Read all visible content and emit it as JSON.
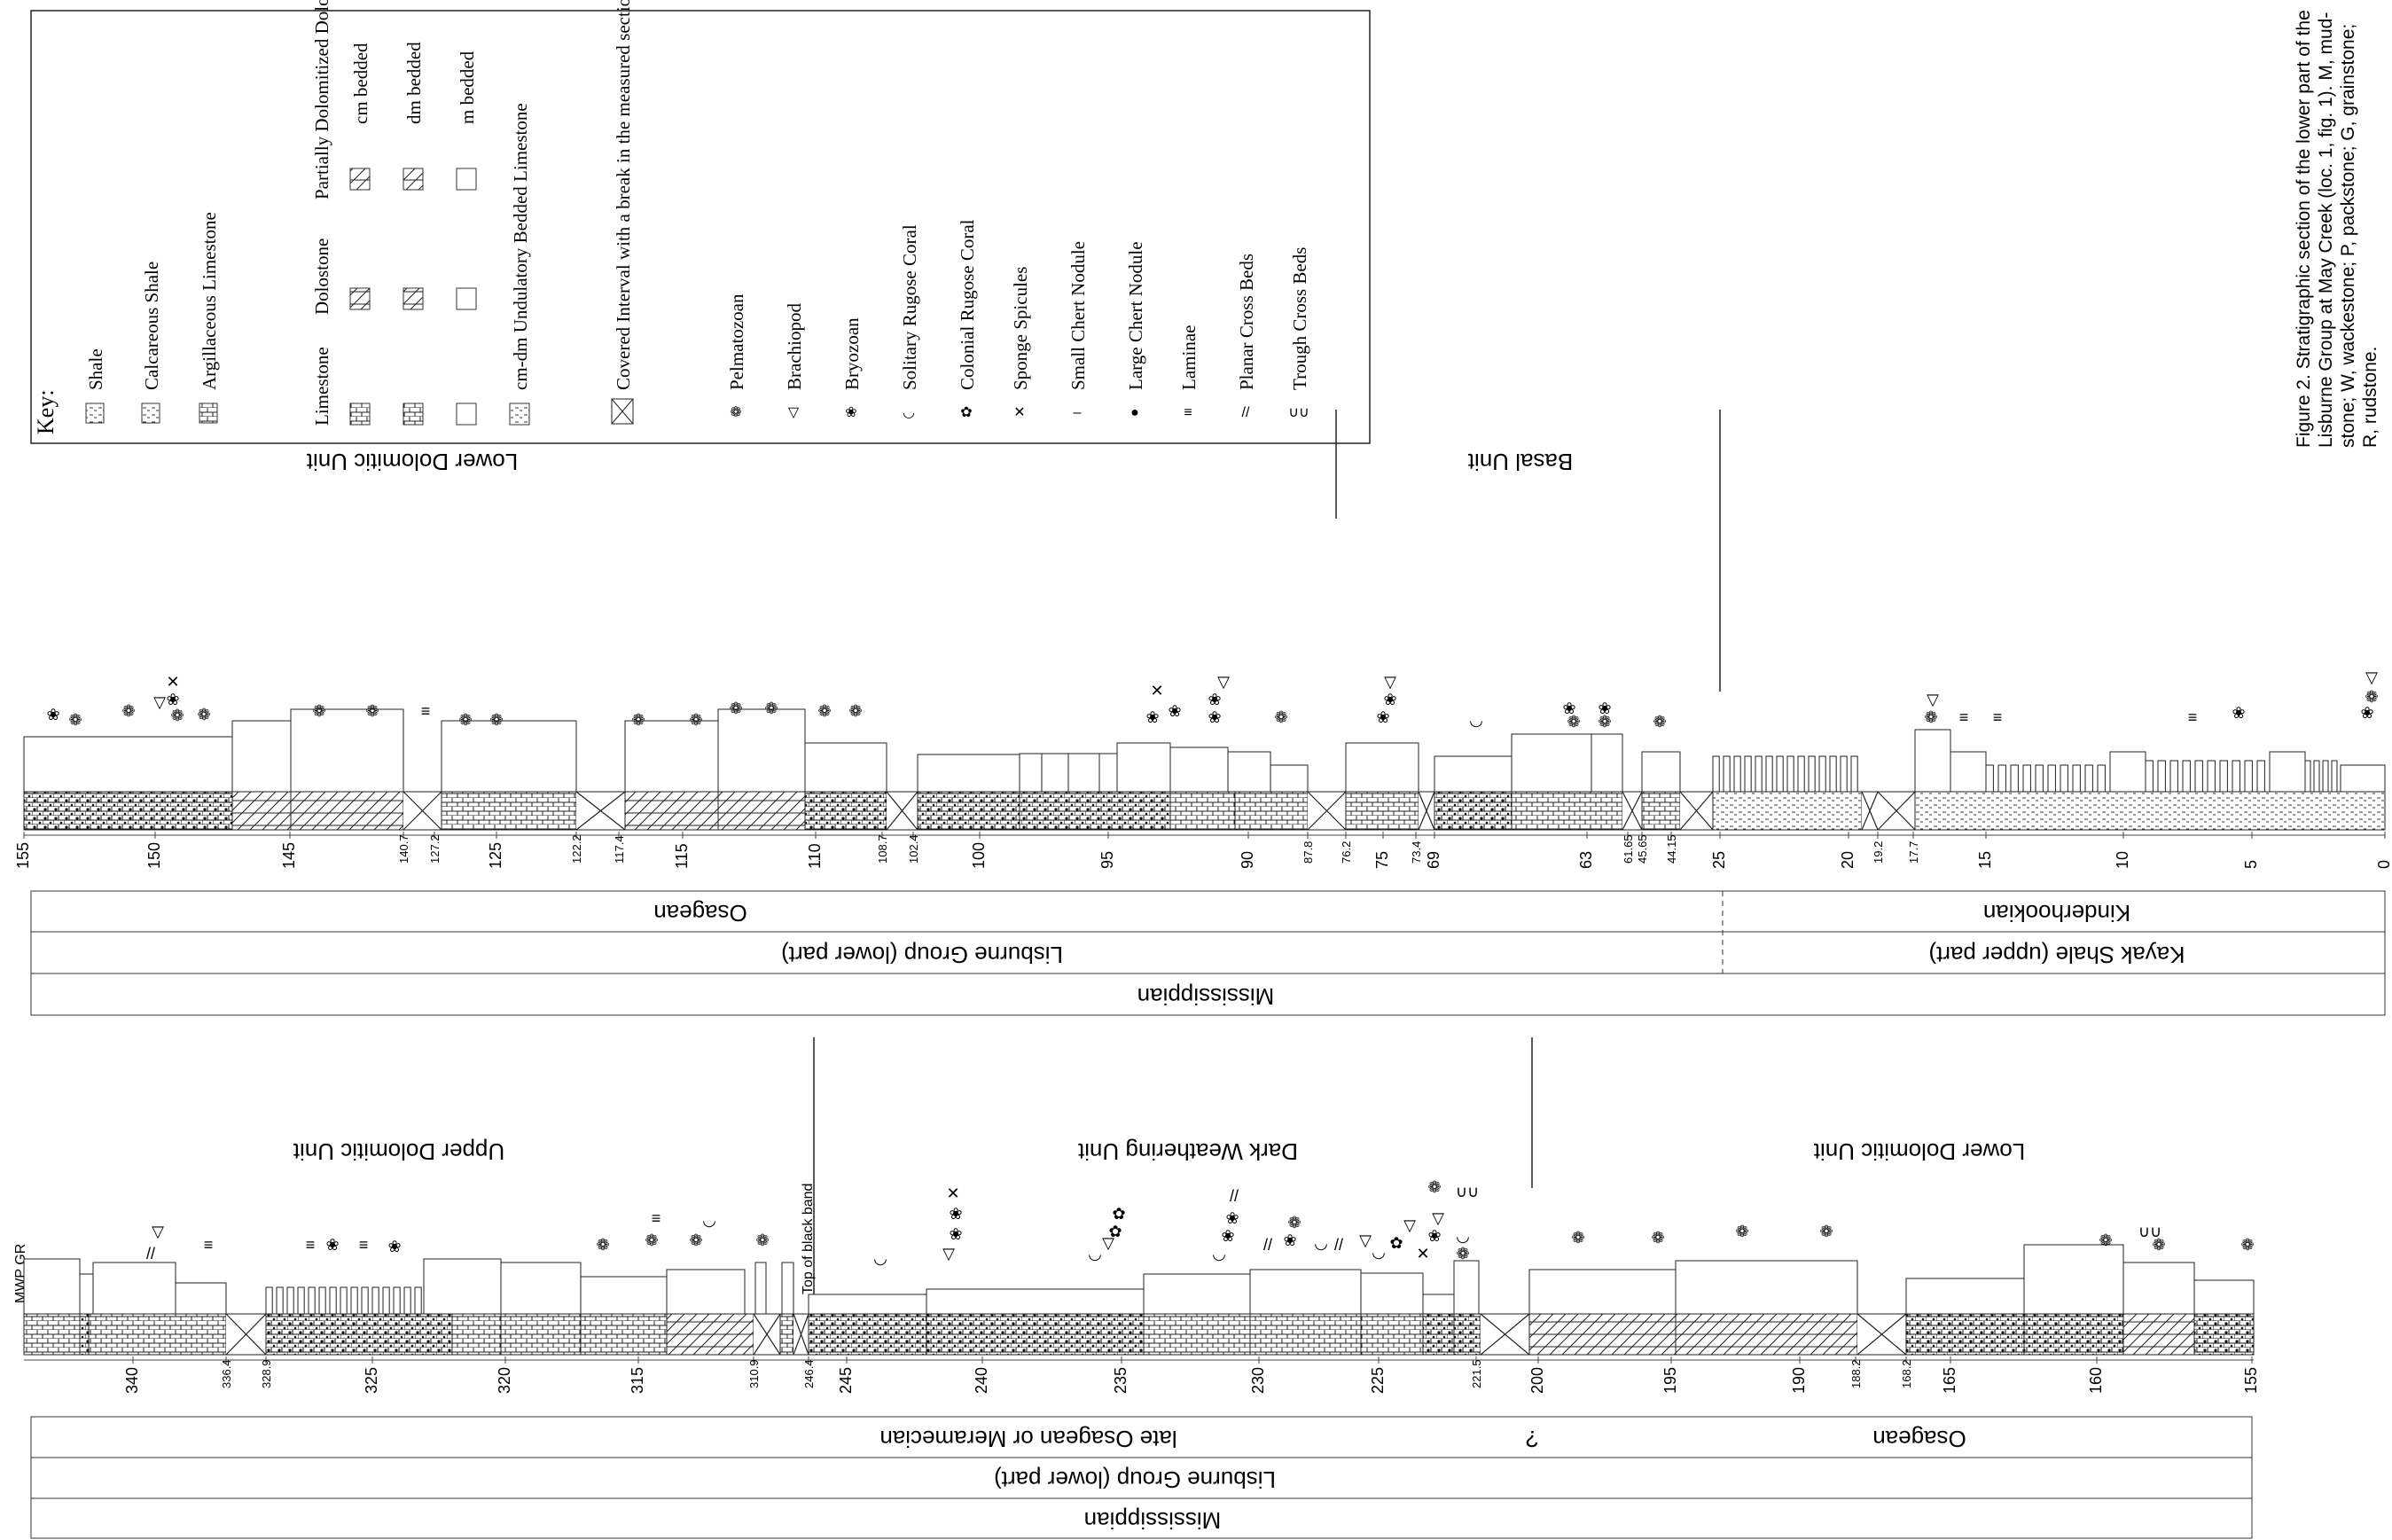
{
  "figure_caption": "Figure 2. Stratigraphic section of the lower part of the Lisburne Group at May Creek (loc. 1, fig. 1). M, mudstone; W, wackestone; P, packstone; G, grainstone; R, rudstone.",
  "key": {
    "title": "Key:",
    "lithology": [
      {
        "label": "Shale"
      },
      {
        "label": "Calcareous Shale"
      },
      {
        "label": "Argillaceous Limestone"
      }
    ],
    "column_headers": [
      "Limestone",
      "Dolostone",
      "Partially Dolomitized Dolostone"
    ],
    "bedding": [
      "cm bedded",
      "dm bedded",
      "m bedded"
    ],
    "undulatory_label": "cm-dm Undulatory Bedded Limestone",
    "covered_label": "Covered Interval with a break in the measured section",
    "fossils": [
      {
        "symbol": "❁",
        "label": "Pelmatozoan"
      },
      {
        "symbol": "▽",
        "label": "Brachiopod"
      },
      {
        "symbol": "❀",
        "label": "Bryozoan"
      },
      {
        "symbol": "◡",
        "label": "Solitary Rugose Coral"
      },
      {
        "symbol": "✿",
        "label": "Colonial Rugose Coral"
      },
      {
        "symbol": "✕",
        "label": "Sponge Spicules"
      },
      {
        "symbol": "–",
        "label": "Small Chert Nodule"
      },
      {
        "symbol": "●",
        "label": "Large Chert Nodule"
      },
      {
        "symbol": "≡",
        "label": "Laminae"
      },
      {
        "symbol": "//",
        "label": "Planar Cross Beds"
      },
      {
        "symbol": "∪∪",
        "label": "Trough Cross Beds"
      }
    ]
  },
  "section_top": {
    "units": [
      "Lower Dolomitic Unit",
      "Basal Unit"
    ],
    "depth_labels": [
      "155",
      "150",
      "145",
      "140.7",
      "127.2",
      "125",
      "122.2",
      "117.4",
      "115",
      "110",
      "108.7",
      "102.4",
      "100",
      "95",
      "90",
      "87.8",
      "76.2",
      "75",
      "73.4",
      "69",
      "63",
      "61.65",
      "45.65",
      "44.15",
      "25",
      "20",
      "19.2",
      "17.7",
      "15",
      "10",
      "5",
      "0"
    ],
    "series": [
      "Osagean",
      "Kinderhookian"
    ],
    "formations": [
      "Lisburne Group (lower part)",
      "Kayak Shale (upper part)"
    ],
    "system": "Mississippian"
  },
  "section_bottom": {
    "units": [
      "Upper Dolomitic Unit",
      "Dark Weathering Unit",
      "Lower Dolomitic Unit"
    ],
    "annotations": [
      "MWP GR",
      "Top of black band"
    ],
    "depth_labels": [
      "340",
      "336.4",
      "328.9",
      "325",
      "320",
      "315",
      "310.9",
      "246.4",
      "245",
      "240",
      "235",
      "230",
      "225",
      "221.5",
      "200",
      "195",
      "190",
      "188.2",
      "168.2",
      "165",
      "160",
      "155"
    ],
    "series": [
      "late Osagean or Meramecian",
      "?",
      "Osagean"
    ],
    "formation": "Lisburne Group (lower part)",
    "system": "Mississippian"
  }
}
